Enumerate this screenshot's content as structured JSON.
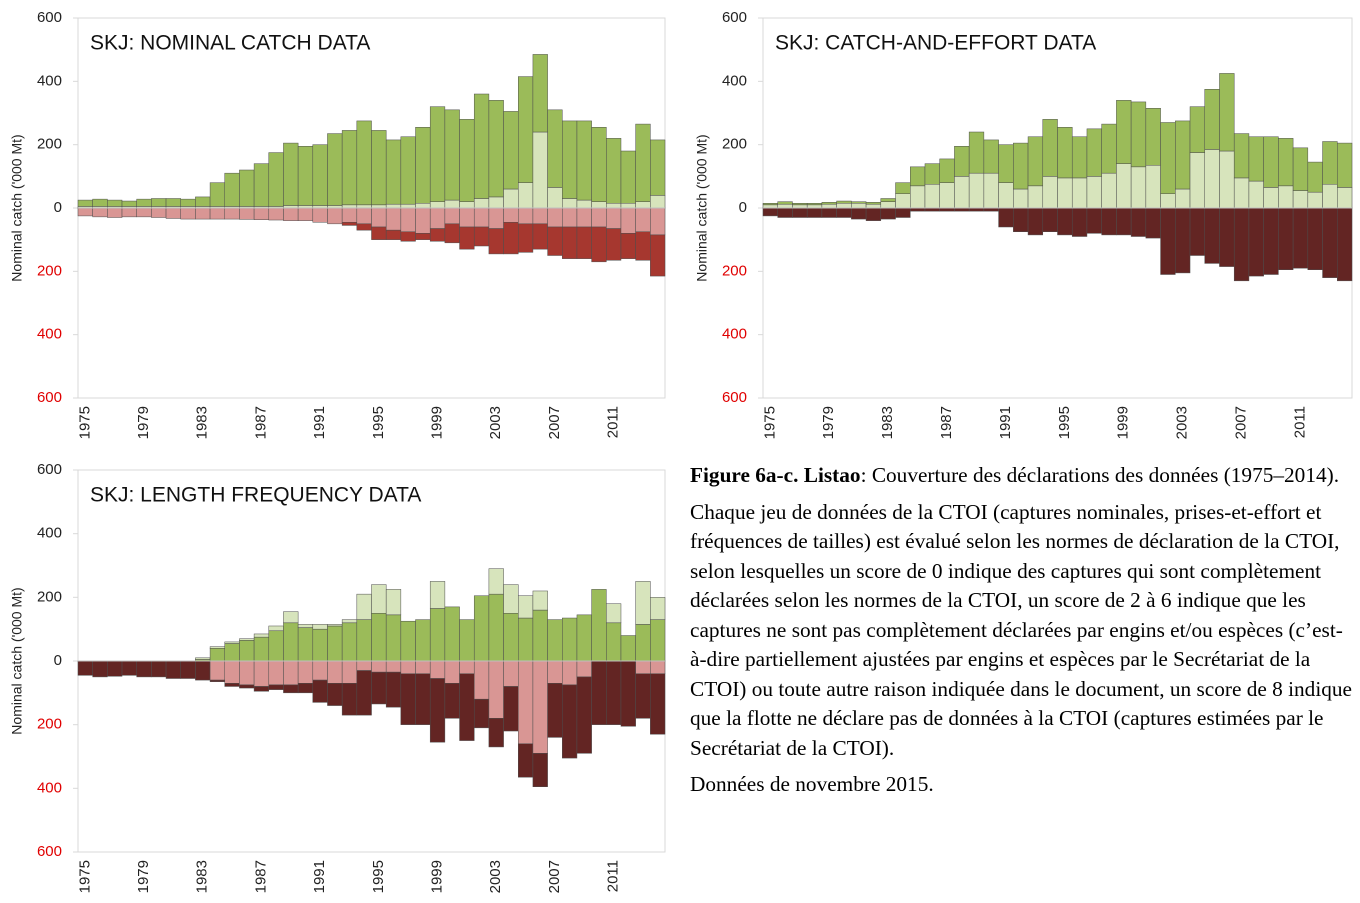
{
  "chart_data": [
    {
      "type": "bar",
      "stacked": true,
      "title": "SKJ: NOMINAL CATCH DATA",
      "ylabel": "Nominal catch ('000 Mt)",
      "categories": [
        "1975",
        null,
        null,
        null,
        "1979",
        null,
        null,
        null,
        "1983",
        null,
        null,
        null,
        "1987",
        null,
        null,
        null,
        "1991",
        null,
        null,
        null,
        "1995",
        null,
        null,
        null,
        "1999",
        null,
        null,
        null,
        "2003",
        null,
        null,
        null,
        "2007",
        null,
        null,
        null,
        "2011",
        null,
        null,
        null
      ],
      "ylim": [
        -600,
        600
      ],
      "yticks": [
        {
          "value": -600,
          "label": "600"
        },
        {
          "value": -400,
          "label": "400"
        },
        {
          "value": -200,
          "label": "200"
        },
        0,
        200,
        400,
        600
      ],
      "series": [
        {
          "color": "#d7e4bc",
          "values": [
            5,
            5,
            5,
            5,
            5,
            5,
            5,
            5,
            5,
            5,
            5,
            5,
            5,
            5,
            8,
            8,
            8,
            8,
            10,
            10,
            10,
            12,
            12,
            15,
            20,
            25,
            20,
            30,
            35,
            60,
            80,
            240,
            65,
            30,
            25,
            20,
            15,
            15,
            20,
            40
          ]
        },
        {
          "color": "#9bbb59",
          "values": [
            20,
            23,
            20,
            17,
            23,
            25,
            25,
            23,
            30,
            75,
            105,
            115,
            135,
            170,
            197,
            187,
            192,
            227,
            235,
            265,
            235,
            203,
            213,
            240,
            300,
            285,
            260,
            330,
            305,
            245,
            335,
            245,
            245,
            245,
            250,
            235,
            205,
            165,
            245,
            175
          ]
        },
        {
          "color": "#d99694",
          "values": [
            -25,
            -28,
            -30,
            -28,
            -28,
            -30,
            -33,
            -35,
            -35,
            -35,
            -35,
            -36,
            -37,
            -38,
            -40,
            -40,
            -45,
            -50,
            -45,
            -50,
            -60,
            -70,
            -75,
            -80,
            -65,
            -50,
            -60,
            -60,
            -65,
            -45,
            -50,
            -50,
            -60,
            -60,
            -60,
            -60,
            -65,
            -80,
            -75,
            -85
          ]
        },
        {
          "color": "#a6372f",
          "values": [
            0,
            0,
            0,
            0,
            0,
            0,
            0,
            0,
            0,
            0,
            0,
            0,
            0,
            0,
            0,
            0,
            0,
            0,
            -10,
            -20,
            -40,
            -30,
            -30,
            -20,
            -40,
            -60,
            -70,
            -60,
            -80,
            -100,
            -90,
            -80,
            -90,
            -100,
            -100,
            -110,
            -100,
            -80,
            -90,
            -130
          ]
        }
      ]
    },
    {
      "type": "bar",
      "stacked": true,
      "title": "SKJ: CATCH-AND-EFFORT DATA",
      "ylabel": "Nominal catch ('000 Mt)",
      "categories": [
        "1975",
        null,
        null,
        null,
        "1979",
        null,
        null,
        null,
        "1983",
        null,
        null,
        null,
        "1987",
        null,
        null,
        null,
        "1991",
        null,
        null,
        null,
        "1995",
        null,
        null,
        null,
        "1999",
        null,
        null,
        null,
        "2003",
        null,
        null,
        null,
        "2007",
        null,
        null,
        null,
        "2011",
        null,
        null,
        null
      ],
      "ylim": [
        -600,
        600
      ],
      "yticks": [
        {
          "value": -600,
          "label": "600"
        },
        {
          "value": -400,
          "label": "400"
        },
        {
          "value": -200,
          "label": "200"
        },
        0,
        200,
        400,
        600
      ],
      "series": [
        {
          "color": "#d7e4bc",
          "values": [
            10,
            12,
            10,
            10,
            12,
            15,
            15,
            12,
            20,
            45,
            70,
            75,
            80,
            100,
            110,
            110,
            80,
            60,
            70,
            100,
            95,
            95,
            100,
            110,
            140,
            130,
            135,
            45,
            60,
            175,
            185,
            180,
            95,
            85,
            65,
            70,
            55,
            50,
            75,
            65
          ]
        },
        {
          "color": "#9bbb59",
          "values": [
            5,
            8,
            5,
            5,
            6,
            7,
            5,
            6,
            10,
            35,
            60,
            65,
            75,
            95,
            130,
            105,
            120,
            145,
            155,
            180,
            160,
            130,
            150,
            155,
            200,
            205,
            180,
            225,
            215,
            145,
            190,
            245,
            140,
            140,
            160,
            150,
            135,
            95,
            135,
            140
          ]
        },
        {
          "color": "#632523",
          "values": [
            -25,
            -30,
            -30,
            -30,
            -30,
            -30,
            -35,
            -40,
            -35,
            -30,
            -10,
            -10,
            -10,
            -10,
            -10,
            -10,
            -60,
            -75,
            -85,
            -75,
            -85,
            -90,
            -80,
            -85,
            -85,
            -90,
            -95,
            -210,
            -205,
            -150,
            -175,
            -185,
            -230,
            -215,
            -210,
            -195,
            -190,
            -195,
            -220,
            -230
          ]
        }
      ]
    },
    {
      "type": "bar",
      "stacked": true,
      "title": "SKJ: LENGTH FREQUENCY DATA",
      "ylabel": "Nominal catch ('000 Mt)",
      "categories": [
        "1975",
        null,
        null,
        null,
        "1979",
        null,
        null,
        null,
        "1983",
        null,
        null,
        null,
        "1987",
        null,
        null,
        null,
        "1991",
        null,
        null,
        null,
        "1995",
        null,
        null,
        null,
        "1999",
        null,
        null,
        null,
        "2003",
        null,
        null,
        null,
        "2007",
        null,
        null,
        null,
        "2011",
        null,
        null,
        null
      ],
      "ylim": [
        -600,
        600
      ],
      "yticks": [
        {
          "value": -600,
          "label": "600"
        },
        {
          "value": -400,
          "label": "400"
        },
        {
          "value": -200,
          "label": "200"
        },
        0,
        200,
        400,
        600
      ],
      "series": [
        {
          "color": "#9bbb59",
          "values": [
            0,
            0,
            0,
            0,
            0,
            0,
            0,
            0,
            5,
            40,
            55,
            65,
            75,
            95,
            120,
            105,
            100,
            110,
            120,
            130,
            150,
            145,
            125,
            130,
            165,
            170,
            130,
            205,
            210,
            150,
            135,
            160,
            130,
            135,
            145,
            225,
            120,
            80,
            115,
            130
          ]
        },
        {
          "color": "#d7e4bc",
          "values": [
            0,
            0,
            0,
            0,
            0,
            0,
            0,
            0,
            5,
            5,
            5,
            5,
            10,
            15,
            35,
            10,
            15,
            5,
            10,
            80,
            90,
            80,
            0,
            0,
            85,
            0,
            0,
            0,
            80,
            90,
            70,
            60,
            0,
            0,
            0,
            0,
            60,
            0,
            135,
            70
          ]
        },
        {
          "color": "#d99694",
          "values": [
            0,
            0,
            0,
            0,
            0,
            0,
            0,
            0,
            0,
            -60,
            -70,
            -75,
            -80,
            -75,
            -75,
            -70,
            -60,
            -70,
            -70,
            -30,
            -35,
            -35,
            -40,
            -40,
            -55,
            -70,
            -40,
            -120,
            -180,
            -80,
            -260,
            -290,
            -70,
            -75,
            -50,
            0,
            0,
            0,
            -40,
            -40
          ]
        },
        {
          "color": "#632523",
          "values": [
            -45,
            -50,
            -48,
            -45,
            -50,
            -50,
            -55,
            -55,
            -60,
            -5,
            -10,
            -10,
            -15,
            -15,
            -25,
            -30,
            -70,
            -70,
            -100,
            -140,
            -100,
            -110,
            -160,
            -160,
            -200,
            -110,
            -210,
            -90,
            -90,
            -140,
            -105,
            -105,
            -170,
            -230,
            -240,
            -200,
            -200,
            -205,
            -140,
            -190
          ]
        }
      ]
    }
  ],
  "caption": {
    "figure": "Figure 6a-c.",
    "species": "Listao",
    "title": ": Couverture des déclarations des données (1975–2014)."
  },
  "paragraphs": [
    "Chaque jeu de données de la CTOI (captures nominales, prises-et-effort et fréquences de tailles) est évalué selon les normes de déclaration de la CTOI, selon lesquelles un score de 0 indique des captures qui sont complètement déclarées selon les normes de la CTOI, un score de 2 à 6 indique que les captures ne sont pas complètement déclarées par engins et/ou espèces (c’est-à-dire partiellement ajustées par engins et espèces par le Secrétariat de la CTOI) ou toute autre raison indiquée dans le document, un score de 8 indique que la flotte ne déclare pas de données à la CTOI (captures estimées par le Secrétariat de la CTOI).",
    "Données de novembre 2015."
  ]
}
